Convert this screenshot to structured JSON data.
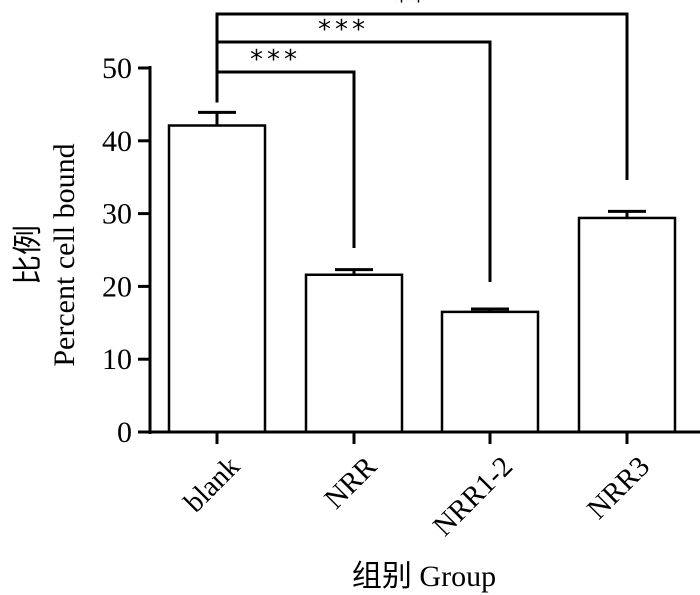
{
  "chart_data": {
    "type": "bar",
    "categories": [
      "blank",
      "NRR",
      "NRR1-2",
      "NRR3"
    ],
    "values": [
      42.1,
      21.6,
      16.5,
      29.4
    ],
    "errors": [
      1.8,
      0.7,
      0.4,
      0.9
    ],
    "ylim": [
      0,
      50
    ],
    "yticks": [
      0,
      10,
      20,
      30,
      40,
      50
    ],
    "ylabel_cn": "比例",
    "ylabel": "Percent cell bound",
    "xlabel": "组别 Group",
    "significance": [
      {
        "from": "blank",
        "to": "NRR",
        "label": "***"
      },
      {
        "from": "blank",
        "to": "NRR1-2",
        "label": "***"
      },
      {
        "from": "blank",
        "to": "NRR3",
        "label": "**"
      }
    ]
  }
}
